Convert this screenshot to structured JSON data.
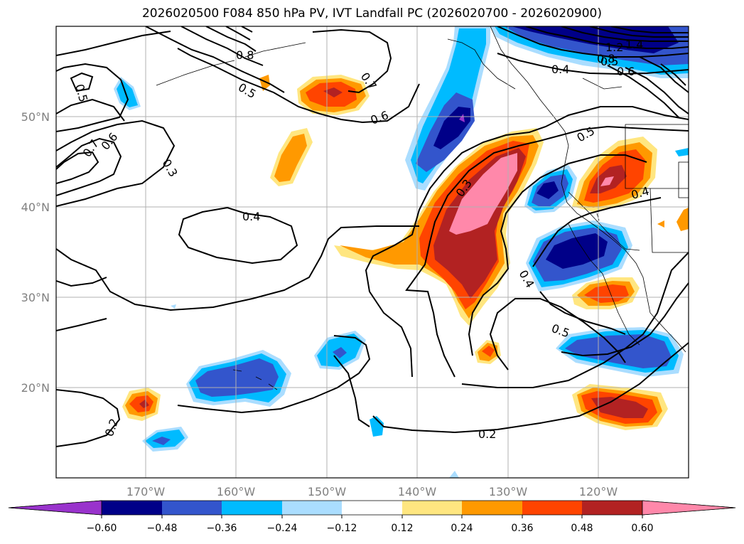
{
  "title": "2026020500 F084 850 hPa PV, IVT Landfall PC (2026020700 - 2026020900)",
  "map": {
    "lon_range": [
      -180,
      -110
    ],
    "lat_range": [
      10,
      60
    ],
    "lon_ticks": [
      {
        "value": -170,
        "label": "170°W"
      },
      {
        "value": -160,
        "label": "160°W"
      },
      {
        "value": -150,
        "label": "150°W"
      },
      {
        "value": -140,
        "label": "140°W"
      },
      {
        "value": -130,
        "label": "130°W"
      },
      {
        "value": -120,
        "label": "120°W"
      }
    ],
    "lat_ticks": [
      {
        "value": 20,
        "label": "20°N"
      },
      {
        "value": 30,
        "label": "30°N"
      },
      {
        "value": 40,
        "label": "40°N"
      },
      {
        "value": 50,
        "label": "50°N"
      }
    ],
    "grid": true
  },
  "colorbar": {
    "ticks": [
      "−0.60",
      "−0.48",
      "−0.36",
      "−0.24",
      "−0.12",
      "0.12",
      "0.24",
      "0.36",
      "0.48",
      "0.60"
    ],
    "colors": [
      "#9933cc",
      "#000088",
      "#3355cc",
      "#00bbff",
      "#aaddff",
      "#ffffff",
      "#ffe680",
      "#ff9900",
      "#ff4400",
      "#b22222",
      "#ff88aa"
    ],
    "extend": "both"
  },
  "contour_labels": [
    "0.5",
    "0.8",
    "0.5",
    "0.7",
    "0.6",
    "0.7",
    "0.6",
    "0.3",
    "0.4",
    "0.3",
    "0.4",
    "0.5",
    "0.4",
    "0.5",
    "0.2",
    "0.2",
    "0.4",
    "0.5",
    "0.6",
    "1.4",
    "1.2",
    "0.8"
  ],
  "colors": {
    "grid": "#b0b0b0",
    "contour": "#000000",
    "axis_text": "#808080"
  }
}
